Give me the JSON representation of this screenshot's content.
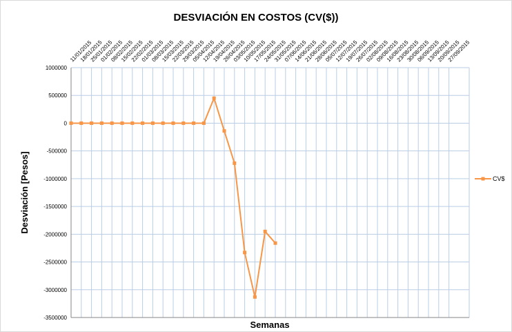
{
  "chart_data": {
    "type": "line",
    "title": "DESVIACIÓN EN COSTOS (CV($))",
    "x_label": "Semanas",
    "y_label": "Desviación [Pesos]",
    "categories": [
      "11/01/2015",
      "18/01/2015",
      "25/01/2015",
      "01/02/2015",
      "08/02/2015",
      "15/02/2015",
      "22/02/2015",
      "01/03/2015",
      "08/03/2015",
      "15/03/2015",
      "22/03/2015",
      "29/03/2015",
      "05/04/2015",
      "12/04/2015",
      "19/04/2015",
      "26/04/2015",
      "03/05/2015",
      "10/05/2015",
      "17/05/2015",
      "24/05/2015",
      "31/05/2015",
      "07/06/2015",
      "14/06/2015",
      "21/06/2015",
      "28/06/2015",
      "05/07/2015",
      "12/07/2015",
      "19/07/2015",
      "26/07/2015",
      "02/08/2015",
      "09/08/2015",
      "16/08/2015",
      "23/08/2015",
      "30/08/2015",
      "06/09/2015",
      "13/09/2015",
      "20/09/2015",
      "27/09/2015"
    ],
    "series": [
      {
        "name": "CV$",
        "color": "#f79646",
        "values": [
          0,
          0,
          0,
          0,
          0,
          0,
          0,
          0,
          0,
          0,
          0,
          0,
          0,
          0,
          450000,
          -140000,
          -720000,
          -2330000,
          -3130000,
          -1950000,
          -2160000,
          null,
          null,
          null,
          null,
          null,
          null,
          null,
          null,
          null,
          null,
          null,
          null,
          null,
          null,
          null,
          null,
          null
        ]
      }
    ],
    "ylim": [
      -3500000,
      1000000
    ],
    "yticks": [
      -3500000,
      -3000000,
      -2500000,
      -2000000,
      -1500000,
      -1000000,
      -500000,
      0,
      500000,
      1000000
    ],
    "grid": true,
    "legend": "right"
  }
}
